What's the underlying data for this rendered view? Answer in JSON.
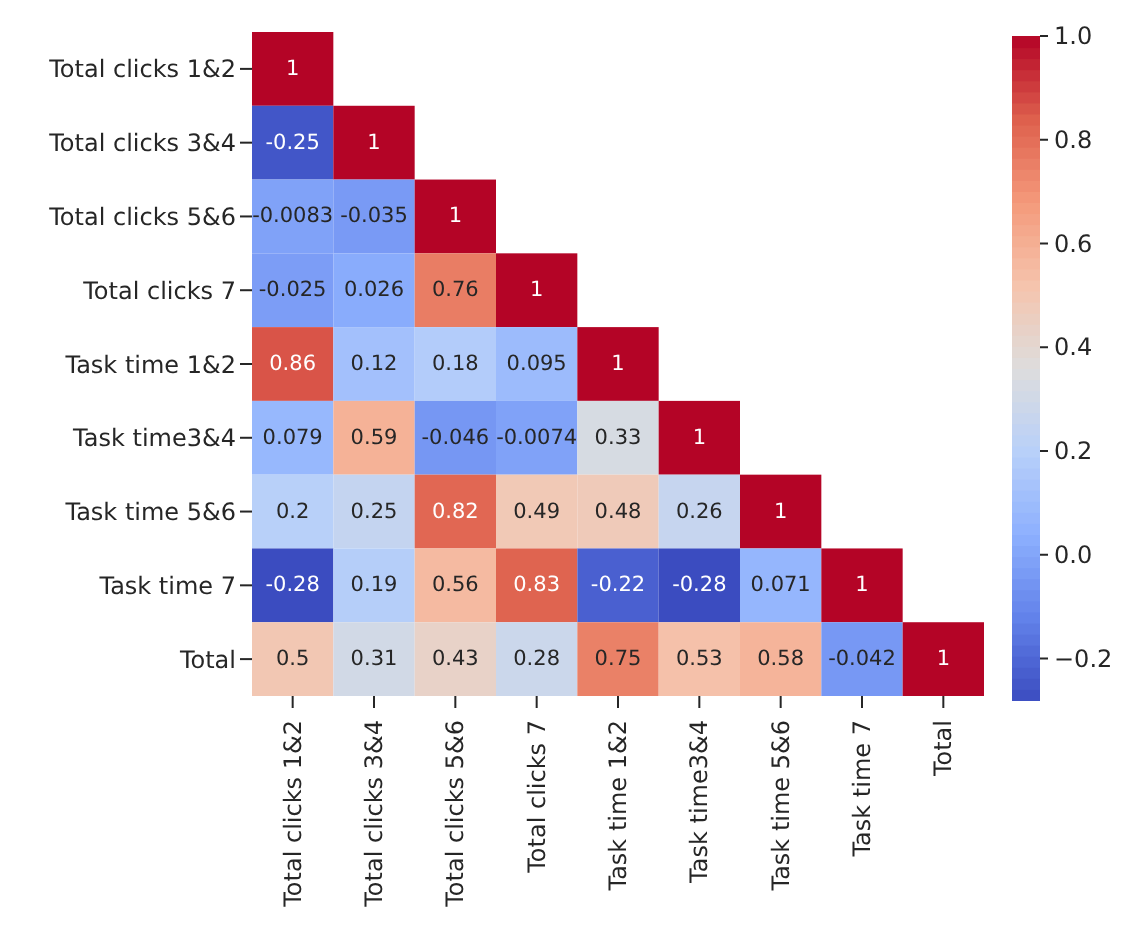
{
  "chart_data": {
    "type": "heatmap",
    "categories": [
      "Total clicks 1&2",
      "Total clicks  3&4",
      "Total clicks 5&6",
      "Total clicks 7",
      "Task time 1&2",
      "Task time3&4",
      "Task time 5&6",
      "Task time 7",
      "Total"
    ],
    "y_categories": [
      "Total clicks 1&2",
      "Total clicks  3&4",
      "Total clicks 5&6",
      "Total clicks 7",
      "Task time 1&2",
      "Task time3&4",
      "Task time 5&6",
      "Task time 7",
      "Total"
    ],
    "cells": [
      [
        1,
        null,
        null,
        null,
        null,
        null,
        null,
        null,
        null
      ],
      [
        -0.25,
        1,
        null,
        null,
        null,
        null,
        null,
        null,
        null
      ],
      [
        -0.0083,
        -0.035,
        1,
        null,
        null,
        null,
        null,
        null,
        null
      ],
      [
        -0.025,
        0.026,
        0.76,
        1,
        null,
        null,
        null,
        null,
        null
      ],
      [
        0.86,
        0.12,
        0.18,
        0.095,
        1,
        null,
        null,
        null,
        null
      ],
      [
        0.079,
        0.59,
        -0.046,
        -0.0074,
        0.33,
        1,
        null,
        null,
        null
      ],
      [
        0.2,
        0.25,
        0.82,
        0.49,
        0.48,
        0.26,
        1,
        null,
        null
      ],
      [
        -0.28,
        0.19,
        0.56,
        0.83,
        -0.22,
        -0.28,
        0.071,
        1,
        null
      ],
      [
        0.5,
        0.31,
        0.43,
        0.28,
        0.75,
        0.53,
        0.58,
        -0.042,
        1
      ]
    ],
    "data_labels": true,
    "clim": [
      -0.28,
      1
    ],
    "cticks": [
      {
        "value": -0.2,
        "label": "−0.2"
      },
      {
        "value": 0,
        "label": "0.0"
      },
      {
        "value": 0.2,
        "label": "0.2"
      },
      {
        "value": 0.4,
        "label": "0.4"
      },
      {
        "value": 0.6,
        "label": "0.6"
      },
      {
        "value": 0.8,
        "label": "0.8"
      },
      {
        "value": 1,
        "label": "1.0"
      }
    ]
  }
}
